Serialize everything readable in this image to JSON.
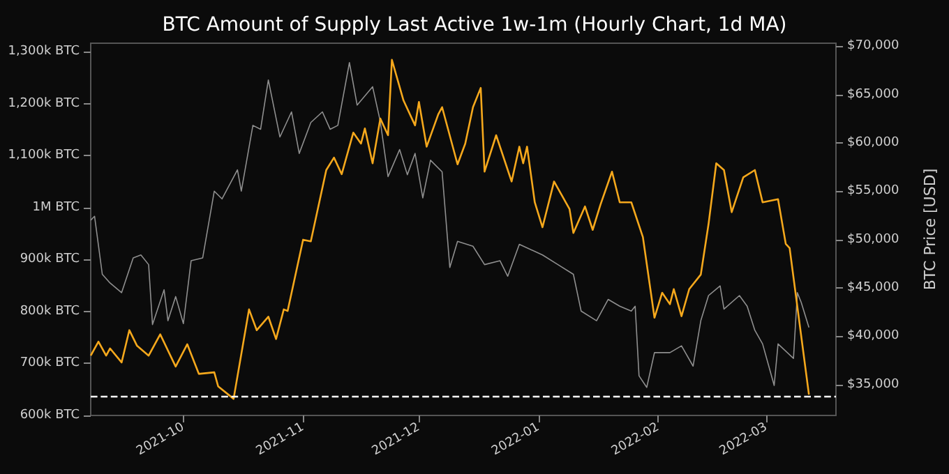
{
  "chart_data": {
    "type": "line",
    "title": "BTC Amount of Supply Last Active 1w-1m (Hourly Chart, 1d MA)",
    "y2label": "BTC Price [USD]",
    "marker": "none",
    "xlim": [
      "2021-09-07",
      "2022-03-19"
    ],
    "xticks": [
      "2021-10",
      "2021-11",
      "2021-12",
      "2022-01",
      "2022-02",
      "2022-03"
    ],
    "ylim": [
      600000,
      1316000
    ],
    "yticks": [
      {
        "value": 600000,
        "label": "600k BTC"
      },
      {
        "value": 700000,
        "label": "700k BTC"
      },
      {
        "value": 800000,
        "label": "800k BTC"
      },
      {
        "value": 900000,
        "label": "900k BTC"
      },
      {
        "value": 1000000,
        "label": "1M BTC"
      },
      {
        "value": 1100000,
        "label": "1,100k BTC"
      },
      {
        "value": 1200000,
        "label": "1,200k BTC"
      },
      {
        "value": 1300000,
        "label": "1,300k BTC"
      }
    ],
    "y2lim": [
      31800,
      70300
    ],
    "y2ticks": [
      {
        "value": 35000,
        "label": "$35,000"
      },
      {
        "value": 40000,
        "label": "$40,000"
      },
      {
        "value": 45000,
        "label": "$45,000"
      },
      {
        "value": 50000,
        "label": "$50,000"
      },
      {
        "value": 55000,
        "label": "$55,000"
      },
      {
        "value": 60000,
        "label": "$60,000"
      },
      {
        "value": 65000,
        "label": "$65,000"
      },
      {
        "value": 70000,
        "label": "$70,000"
      }
    ],
    "ref_lines": [
      {
        "axis": "y",
        "value": 638000,
        "label": null,
        "color": "#ffffff",
        "line_style": "dashed"
      }
    ],
    "series": [
      {
        "axis": "y2",
        "color": "#8f8f8f",
        "x": [
          "2021-09-07",
          "2021-09-08",
          "2021-09-10",
          "2021-09-12",
          "2021-09-15",
          "2021-09-18",
          "2021-09-20",
          "2021-09-22",
          "2021-09-23",
          "2021-09-26",
          "2021-09-27",
          "2021-09-29",
          "2021-10-01",
          "2021-10-03",
          "2021-10-06",
          "2021-10-09",
          "2021-10-11",
          "2021-10-15",
          "2021-10-16",
          "2021-10-19",
          "2021-10-21",
          "2021-10-23",
          "2021-10-26",
          "2021-10-29",
          "2021-10-31",
          "2021-11-03",
          "2021-11-06",
          "2021-11-08",
          "2021-11-10",
          "2021-11-13",
          "2021-11-15",
          "2021-11-19",
          "2021-11-21",
          "2021-11-23",
          "2021-11-26",
          "2021-11-28",
          "2021-11-30",
          "2021-12-02",
          "2021-12-04",
          "2021-12-07",
          "2021-12-09",
          "2021-12-11",
          "2021-12-15",
          "2021-12-18",
          "2021-12-22",
          "2021-12-24",
          "2021-12-27",
          "2022-01-02",
          "2022-01-06",
          "2022-01-10",
          "2022-01-12",
          "2022-01-16",
          "2022-01-19",
          "2022-01-22",
          "2022-01-25",
          "2022-01-26",
          "2022-01-27",
          "2022-01-29",
          "2022-01-31",
          "2022-02-04",
          "2022-02-07",
          "2022-02-10",
          "2022-02-12",
          "2022-02-14",
          "2022-02-17",
          "2022-02-18",
          "2022-02-22",
          "2022-02-24",
          "2022-02-26",
          "2022-02-28",
          "2022-03-03",
          "2022-03-04",
          "2022-03-08",
          "2022-03-09",
          "2022-03-10",
          "2022-03-12"
        ],
        "values": [
          52000,
          52400,
          46400,
          45500,
          44500,
          48100,
          48400,
          47400,
          41200,
          44800,
          41600,
          44100,
          41300,
          47800,
          48100,
          55000,
          54200,
          57200,
          55000,
          61800,
          61400,
          66500,
          60600,
          63200,
          58900,
          62100,
          63200,
          61400,
          61800,
          68300,
          63900,
          65800,
          62200,
          56500,
          59300,
          56700,
          58900,
          54300,
          58200,
          57000,
          47100,
          49800,
          49300,
          47400,
          47800,
          46200,
          49500,
          48400,
          47400,
          46400,
          42600,
          41600,
          43800,
          43100,
          42600,
          43100,
          35900,
          34700,
          38300,
          38300,
          39000,
          36900,
          41600,
          44200,
          45200,
          42800,
          44200,
          43100,
          40600,
          39200,
          34900,
          39200,
          37700,
          44500,
          43500,
          40900
        ]
      },
      {
        "axis": "y",
        "color": "#f5a81c",
        "x": [
          "2021-09-07",
          "2021-09-09",
          "2021-09-11",
          "2021-09-12",
          "2021-09-15",
          "2021-09-17",
          "2021-09-19",
          "2021-09-22",
          "2021-09-25",
          "2021-09-29",
          "2021-10-02",
          "2021-10-05",
          "2021-10-09",
          "2021-10-10",
          "2021-10-14",
          "2021-10-18",
          "2021-10-20",
          "2021-10-23",
          "2021-10-25",
          "2021-10-27",
          "2021-10-28",
          "2021-11-01",
          "2021-11-03",
          "2021-11-07",
          "2021-11-09",
          "2021-11-11",
          "2021-11-14",
          "2021-11-16",
          "2021-11-17",
          "2021-11-19",
          "2021-11-21",
          "2021-11-23",
          "2021-11-24",
          "2021-11-27",
          "2021-11-30",
          "2021-12-01",
          "2021-12-03",
          "2021-12-06",
          "2021-12-07",
          "2021-12-11",
          "2021-12-13",
          "2021-12-15",
          "2021-12-17",
          "2021-12-18",
          "2021-12-21",
          "2021-12-25",
          "2021-12-27",
          "2021-12-28",
          "2021-12-29",
          "2021-12-31",
          "2022-01-02",
          "2022-01-05",
          "2022-01-09",
          "2022-01-10",
          "2022-01-13",
          "2022-01-15",
          "2022-01-17",
          "2022-01-20",
          "2022-01-22",
          "2022-01-25",
          "2022-01-28",
          "2022-01-31",
          "2022-02-02",
          "2022-02-04",
          "2022-02-05",
          "2022-02-07",
          "2022-02-09",
          "2022-02-12",
          "2022-02-14",
          "2022-02-16",
          "2022-02-18",
          "2022-02-20",
          "2022-02-23",
          "2022-02-26",
          "2022-02-28",
          "2022-03-04",
          "2022-03-06",
          "2022-03-07",
          "2022-03-12"
        ],
        "values": [
          715000,
          742000,
          715000,
          729000,
          702000,
          764000,
          734000,
          715000,
          756000,
          694000,
          737000,
          680000,
          683000,
          656000,
          632000,
          804000,
          764000,
          790000,
          747000,
          804000,
          801000,
          938000,
          935000,
          1072000,
          1096000,
          1064000,
          1144000,
          1123000,
          1152000,
          1085000,
          1171000,
          1139000,
          1284000,
          1206000,
          1158000,
          1203000,
          1117000,
          1179000,
          1193000,
          1083000,
          1123000,
          1193000,
          1230000,
          1069000,
          1139000,
          1050000,
          1117000,
          1085000,
          1117000,
          1010000,
          962000,
          1050000,
          997000,
          951000,
          1002000,
          957000,
          1005000,
          1069000,
          1010000,
          1010000,
          943000,
          788000,
          836000,
          814000,
          843000,
          791000,
          843000,
          871000,
          968000,
          1085000,
          1072000,
          991000,
          1058000,
          1072000,
          1010000,
          1016000,
          930000,
          922000,
          640000
        ]
      }
    ]
  }
}
